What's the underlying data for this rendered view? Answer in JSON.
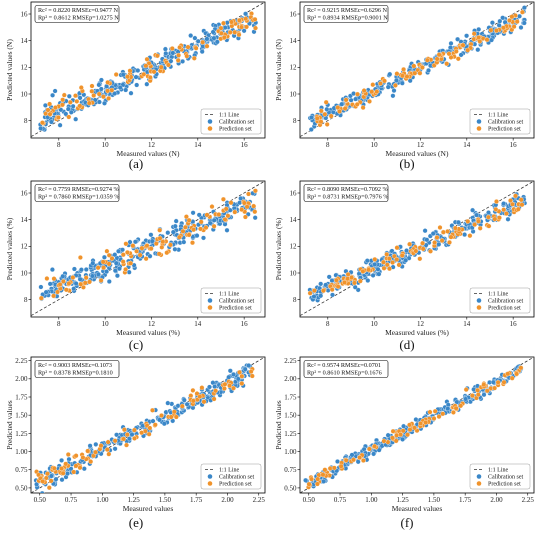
{
  "colors": {
    "calibration": "#3a87c8",
    "prediction": "#f0932b",
    "line": "#333333",
    "point_edge": "#ffffff"
  },
  "chart_data": [
    {
      "type": "scatter",
      "label": "(a)",
      "xlabel": "Measured values (N)",
      "ylabel": "Predicted values (N)",
      "xlim": [
        6.8,
        16.9
      ],
      "ylim": [
        6.7,
        16.9
      ],
      "xticks": [
        8,
        10,
        12,
        14,
        16
      ],
      "yticks": [
        8,
        10,
        12,
        14,
        16
      ],
      "tick_decimals": 0,
      "stats": [
        "Rc² = 0.8220 RMSEc=0.9477 N",
        "Rp² = 0.8612 RMSEp=1.0275 N"
      ],
      "legend": [
        "1:1 Line",
        "Calibration set",
        "Prediction set"
      ],
      "legend_position": "lower-right",
      "trend": {
        "x0": 7.2,
        "x1": 16.5,
        "slope": 0.82,
        "noise": 0.85,
        "n_cal": 300,
        "n_pred": 110,
        "seed": 11
      }
    },
    {
      "type": "scatter",
      "label": "(b)",
      "xlabel": "Measured values (N)",
      "ylabel": "Predicted values (N)",
      "xlim": [
        6.8,
        16.9
      ],
      "ylim": [
        6.7,
        16.9
      ],
      "xticks": [
        8,
        10,
        12,
        14,
        16
      ],
      "yticks": [
        8,
        10,
        12,
        14,
        16
      ],
      "tick_decimals": 0,
      "stats": [
        "Rc² = 0.9215 RMSEc=0.6296 N",
        "Rp² = 0.8934 RMSEp=0.9001 N"
      ],
      "legend": [
        "1:1 Line",
        "Calibration set",
        "Prediction set"
      ],
      "legend_position": "lower-right",
      "trend": {
        "x0": 7.2,
        "x1": 16.5,
        "slope": 0.85,
        "noise": 0.55,
        "n_cal": 300,
        "n_pred": 110,
        "seed": 23
      }
    },
    {
      "type": "scatter",
      "label": "(c)",
      "xlabel": "Measured values (%)",
      "ylabel": "Predicted values (%)",
      "xlim": [
        6.8,
        16.9
      ],
      "ylim": [
        6.7,
        16.9
      ],
      "xticks": [
        8,
        10,
        12,
        14,
        16
      ],
      "yticks": [
        8,
        10,
        12,
        14,
        16
      ],
      "tick_decimals": 0,
      "stats": [
        "Rc² = 0.7759 RMSEc=0.9274 %",
        "Rp² = 0.7860 RMSEp=1.0359 %"
      ],
      "legend": [
        "1:1 Line",
        "Calibration set",
        "Prediction set"
      ],
      "legend_position": "lower-right",
      "trend": {
        "x0": 7.2,
        "x1": 16.5,
        "slope": 0.75,
        "noise": 0.9,
        "n_cal": 300,
        "n_pred": 110,
        "seed": 37
      }
    },
    {
      "type": "scatter",
      "label": "(d)",
      "xlabel": "Measured values (%)",
      "ylabel": "Predicted values (%)",
      "xlim": [
        6.8,
        16.9
      ],
      "ylim": [
        6.7,
        16.9
      ],
      "xticks": [
        8,
        10,
        12,
        14,
        16
      ],
      "yticks": [
        8,
        10,
        12,
        14,
        16
      ],
      "tick_decimals": 0,
      "stats": [
        "Rc² = 0.8090 RMSEc=0.7092 %",
        "Rp² = 0.8731 RMSEp=0.7976 %"
      ],
      "legend": [
        "1:1 Line",
        "Calibration set",
        "Prediction set"
      ],
      "legend_position": "lower-right",
      "trend": {
        "x0": 7.2,
        "x1": 16.5,
        "slope": 0.78,
        "noise": 0.65,
        "n_cal": 300,
        "n_pred": 110,
        "seed": 51
      }
    },
    {
      "type": "scatter",
      "label": "(e)",
      "xlabel": "Measured values",
      "ylabel": "Predicted values",
      "xlim": [
        0.43,
        2.3
      ],
      "ylim": [
        0.43,
        2.3
      ],
      "xticks": [
        0.5,
        0.75,
        1.0,
        1.25,
        1.5,
        1.75,
        2.0,
        2.25
      ],
      "yticks": [
        0.5,
        0.75,
        1.0,
        1.25,
        1.5,
        1.75,
        2.0,
        2.25
      ],
      "tick_decimals": 2,
      "stats": [
        "Rc² = 0.9003 RMSEc=0.1073",
        "Rp² = 0.8378 RMSEp=0.1810"
      ],
      "legend": [
        "1:1 Line",
        "Calibration set",
        "Prediction set"
      ],
      "legend_position": "lower-right",
      "trend": {
        "x0": 0.47,
        "x1": 2.2,
        "slope": 0.9,
        "noise": 0.11,
        "n_cal": 260,
        "n_pred": 100,
        "seed": 67
      }
    },
    {
      "type": "scatter",
      "label": "(f)",
      "xlabel": "Measured values",
      "ylabel": "Predicted values",
      "xlim": [
        0.43,
        2.3
      ],
      "ylim": [
        0.43,
        2.3
      ],
      "xticks": [
        0.5,
        0.75,
        1.0,
        1.25,
        1.5,
        1.75,
        2.0,
        2.25
      ],
      "yticks": [
        0.5,
        0.75,
        1.0,
        1.25,
        1.5,
        1.75,
        2.0,
        2.25
      ],
      "tick_decimals": 2,
      "stats": [
        "Rc² = 0.9574 RMSEc=0.0701",
        "Rp² = 0.8610 RMSEp=0.1676"
      ],
      "legend": [
        "1:1 Line",
        "Calibration set",
        "Prediction set"
      ],
      "legend_position": "lower-right",
      "trend": {
        "x0": 0.47,
        "x1": 2.2,
        "slope": 0.92,
        "noise": 0.08,
        "n_cal": 260,
        "n_pred": 100,
        "seed": 79
      }
    }
  ]
}
